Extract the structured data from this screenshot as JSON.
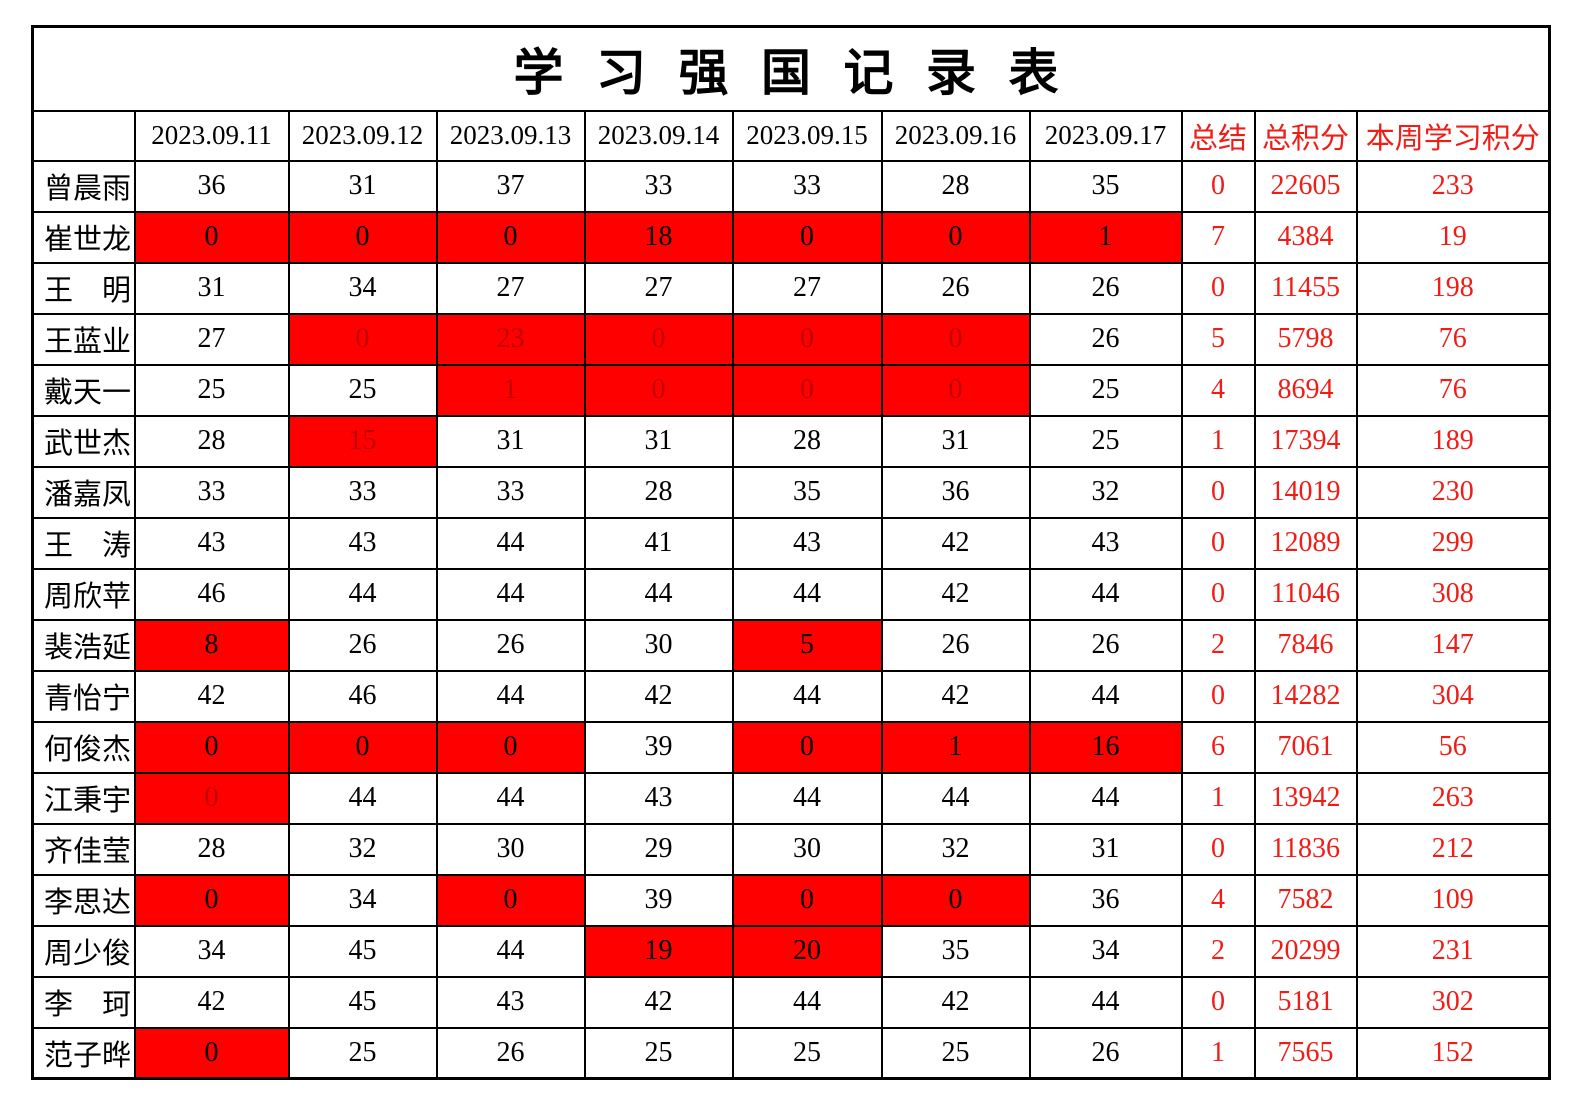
{
  "title": "学 习 强 国 记 录 表",
  "header": {
    "corner": "",
    "dates": [
      "2023.09.11",
      "2023.09.12",
      "2023.09.13",
      "2023.09.14",
      "2023.09.15",
      "2023.09.16",
      "2023.09.17"
    ],
    "summary": "总结",
    "total": "总积分",
    "week": "本周学习积分"
  },
  "colors": {
    "cell_red_bg": "#ff0000",
    "accent_red_text": "#f01c15",
    "dim_red_text": "#c00000",
    "grid": "#000000"
  },
  "rows": [
    {
      "name": "曾晨雨",
      "days": [
        "36",
        "31",
        "37",
        "33",
        "33",
        "28",
        "35"
      ],
      "red_days": [],
      "dim_days": [],
      "summary": "0",
      "total": "22605",
      "week": "233"
    },
    {
      "name": "崔世龙",
      "days": [
        "0",
        "0",
        "0",
        "18",
        "0",
        "0",
        "1"
      ],
      "red_days": [
        0,
        1,
        2,
        3,
        4,
        5,
        6
      ],
      "dim_days": [],
      "summary": "7",
      "total": "4384",
      "week": "19"
    },
    {
      "name": "王　明",
      "days": [
        "31",
        "34",
        "27",
        "27",
        "27",
        "26",
        "26"
      ],
      "red_days": [],
      "dim_days": [],
      "summary": "0",
      "total": "11455",
      "week": "198"
    },
    {
      "name": "王蓝业",
      "days": [
        "27",
        "0",
        "23",
        "0",
        "0",
        "0",
        "26"
      ],
      "red_days": [
        1,
        2,
        3,
        4,
        5
      ],
      "dim_days": [
        1,
        2,
        3,
        4,
        5
      ],
      "summary": "5",
      "total": "5798",
      "week": "76"
    },
    {
      "name": "戴天一",
      "days": [
        "25",
        "25",
        "1",
        "0",
        "0",
        "0",
        "25"
      ],
      "red_days": [
        2,
        3,
        4,
        5
      ],
      "dim_days": [
        2,
        3,
        4,
        5
      ],
      "summary": "4",
      "total": "8694",
      "week": "76"
    },
    {
      "name": "武世杰",
      "days": [
        "28",
        "15",
        "31",
        "31",
        "28",
        "31",
        "25"
      ],
      "red_days": [
        1
      ],
      "dim_days": [
        1
      ],
      "summary": "1",
      "total": "17394",
      "week": "189"
    },
    {
      "name": "潘嘉凤",
      "days": [
        "33",
        "33",
        "33",
        "28",
        "35",
        "36",
        "32"
      ],
      "red_days": [],
      "dim_days": [],
      "summary": "0",
      "total": "14019",
      "week": "230"
    },
    {
      "name": "王　涛",
      "days": [
        "43",
        "43",
        "44",
        "41",
        "43",
        "42",
        "43"
      ],
      "red_days": [],
      "dim_days": [],
      "summary": "0",
      "total": "12089",
      "week": "299"
    },
    {
      "name": "周欣苹",
      "days": [
        "46",
        "44",
        "44",
        "44",
        "44",
        "42",
        "44"
      ],
      "red_days": [],
      "dim_days": [],
      "summary": "0",
      "total": "11046",
      "week": "308"
    },
    {
      "name": "裴浩延",
      "days": [
        "8",
        "26",
        "26",
        "30",
        "5",
        "26",
        "26"
      ],
      "red_days": [
        0,
        4
      ],
      "dim_days": [],
      "summary": "2",
      "total": "7846",
      "week": "147"
    },
    {
      "name": "青怡宁",
      "days": [
        "42",
        "46",
        "44",
        "42",
        "44",
        "42",
        "44"
      ],
      "red_days": [],
      "dim_days": [],
      "summary": "0",
      "total": "14282",
      "week": "304"
    },
    {
      "name": "何俊杰",
      "days": [
        "0",
        "0",
        "0",
        "39",
        "0",
        "1",
        "16"
      ],
      "red_days": [
        0,
        1,
        2,
        4,
        5,
        6
      ],
      "dim_days": [],
      "summary": "6",
      "total": "7061",
      "week": "56"
    },
    {
      "name": "江秉宇",
      "days": [
        "0",
        "44",
        "44",
        "43",
        "44",
        "44",
        "44"
      ],
      "red_days": [
        0
      ],
      "dim_days": [
        0
      ],
      "summary": "1",
      "total": "13942",
      "week": "263"
    },
    {
      "name": "齐佳莹",
      "days": [
        "28",
        "32",
        "30",
        "29",
        "30",
        "32",
        "31"
      ],
      "red_days": [],
      "dim_days": [],
      "summary": "0",
      "total": "11836",
      "week": "212"
    },
    {
      "name": "李思达",
      "days": [
        "0",
        "34",
        "0",
        "39",
        "0",
        "0",
        "36"
      ],
      "red_days": [
        0,
        2,
        4,
        5
      ],
      "dim_days": [],
      "summary": "4",
      "total": "7582",
      "week": "109"
    },
    {
      "name": "周少俊",
      "days": [
        "34",
        "45",
        "44",
        "19",
        "20",
        "35",
        "34"
      ],
      "red_days": [
        3,
        4
      ],
      "dim_days": [],
      "summary": "2",
      "total": "20299",
      "week": "231"
    },
    {
      "name": "李　珂",
      "days": [
        "42",
        "45",
        "43",
        "42",
        "44",
        "42",
        "44"
      ],
      "red_days": [],
      "dim_days": [],
      "summary": "0",
      "total": "5181",
      "week": "302"
    },
    {
      "name": "范子晔",
      "days": [
        "0",
        "25",
        "26",
        "25",
        "25",
        "25",
        "26"
      ],
      "red_days": [
        0
      ],
      "dim_days": [],
      "summary": "1",
      "total": "7565",
      "week": "152"
    }
  ]
}
